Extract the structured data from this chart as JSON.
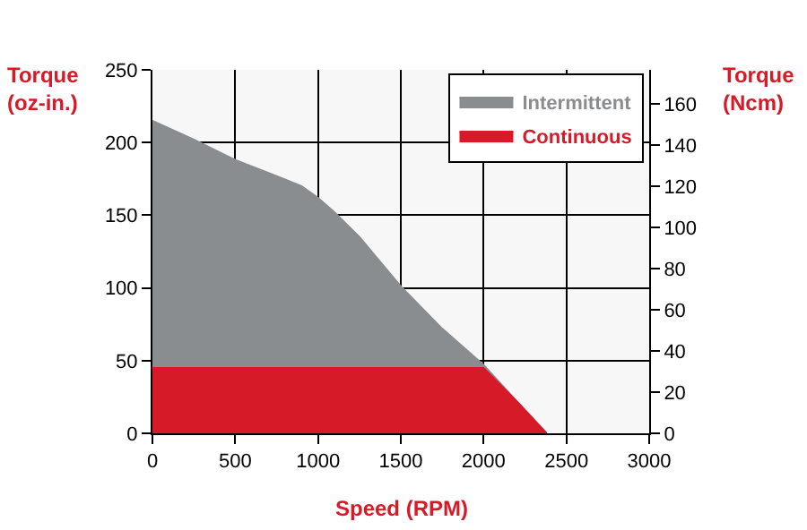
{
  "chart_data": {
    "type": "area",
    "xlabel": "Speed (RPM)",
    "ylabel": "Torque\n(oz-in.)",
    "y2label": "Torque\n(Ncm)",
    "series": [
      {
        "name": "Intermittent",
        "color": "#8a8d90",
        "x": [
          0,
          250,
          500,
          750,
          900,
          1000,
          1100,
          1250,
          1500,
          1750,
          2000,
          2200,
          2380
        ],
        "values": [
          215,
          202,
          188,
          177,
          170,
          162,
          152,
          135,
          101,
          72,
          47,
          22,
          0
        ]
      },
      {
        "name": "Continuous",
        "color": "#d71a28",
        "x": [
          0,
          2000,
          2200,
          2380
        ],
        "values": [
          45,
          45,
          22,
          0
        ]
      }
    ],
    "xlim": [
      0,
      3000
    ],
    "xticks": [
      0,
      500,
      1000,
      1500,
      2000,
      2500,
      3000
    ],
    "ylim": [
      0,
      250
    ],
    "yticks": [
      0,
      50,
      100,
      150,
      200,
      250
    ],
    "y2lim": [
      0,
      176.5
    ],
    "y2ticks": [
      0,
      20,
      40,
      60,
      80,
      100,
      120,
      140,
      160
    ],
    "grid": true,
    "legend": "top right"
  }
}
